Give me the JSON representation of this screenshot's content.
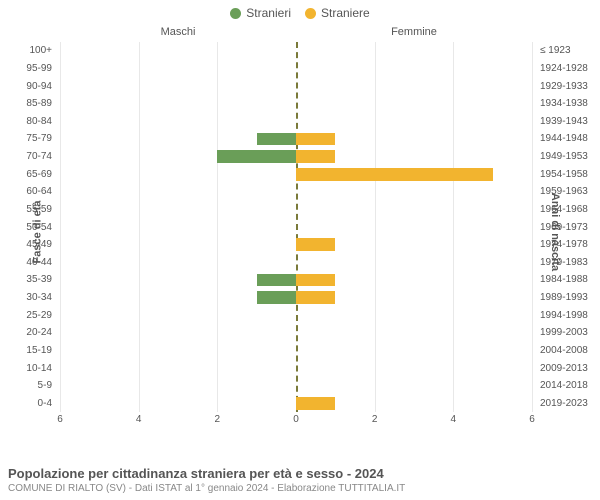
{
  "legend": {
    "male": {
      "label": "Stranieri",
      "color": "#6a9e58"
    },
    "female": {
      "label": "Straniere",
      "color": "#f2b42f"
    }
  },
  "titles": {
    "male": "Maschi",
    "female": "Femmine"
  },
  "axis": {
    "left_title": "Fasce di età",
    "right_title": "Anni di nascita",
    "max": 6,
    "ticks": [
      6,
      4,
      2,
      0,
      2,
      4,
      6
    ],
    "center_color": "#7a7a3a",
    "grid_color": "#e8e8e8"
  },
  "rows": [
    {
      "age": "100+",
      "birth": "≤ 1923",
      "m": 0,
      "f": 0
    },
    {
      "age": "95-99",
      "birth": "1924-1928",
      "m": 0,
      "f": 0
    },
    {
      "age": "90-94",
      "birth": "1929-1933",
      "m": 0,
      "f": 0
    },
    {
      "age": "85-89",
      "birth": "1934-1938",
      "m": 0,
      "f": 0
    },
    {
      "age": "80-84",
      "birth": "1939-1943",
      "m": 0,
      "f": 0
    },
    {
      "age": "75-79",
      "birth": "1944-1948",
      "m": 1,
      "f": 1
    },
    {
      "age": "70-74",
      "birth": "1949-1953",
      "m": 2,
      "f": 1
    },
    {
      "age": "65-69",
      "birth": "1954-1958",
      "m": 0,
      "f": 5
    },
    {
      "age": "60-64",
      "birth": "1959-1963",
      "m": 0,
      "f": 0
    },
    {
      "age": "55-59",
      "birth": "1964-1968",
      "m": 0,
      "f": 0
    },
    {
      "age": "50-54",
      "birth": "1969-1973",
      "m": 0,
      "f": 0
    },
    {
      "age": "45-49",
      "birth": "1974-1978",
      "m": 0,
      "f": 1
    },
    {
      "age": "40-44",
      "birth": "1979-1983",
      "m": 0,
      "f": 0
    },
    {
      "age": "35-39",
      "birth": "1984-1988",
      "m": 1,
      "f": 1
    },
    {
      "age": "30-34",
      "birth": "1989-1993",
      "m": 1,
      "f": 1
    },
    {
      "age": "25-29",
      "birth": "1994-1998",
      "m": 0,
      "f": 0
    },
    {
      "age": "20-24",
      "birth": "1999-2003",
      "m": 0,
      "f": 0
    },
    {
      "age": "15-19",
      "birth": "2004-2008",
      "m": 0,
      "f": 0
    },
    {
      "age": "10-14",
      "birth": "2009-2013",
      "m": 0,
      "f": 0
    },
    {
      "age": "5-9",
      "birth": "2014-2018",
      "m": 0,
      "f": 0
    },
    {
      "age": "0-4",
      "birth": "2019-2023",
      "m": 0,
      "f": 1
    }
  ],
  "footer": {
    "title": "Popolazione per cittadinanza straniera per età e sesso - 2024",
    "subtitle": "COMUNE DI RIALTO (SV) - Dati ISTAT al 1° gennaio 2024 - Elaborazione TUTTITALIA.IT"
  }
}
